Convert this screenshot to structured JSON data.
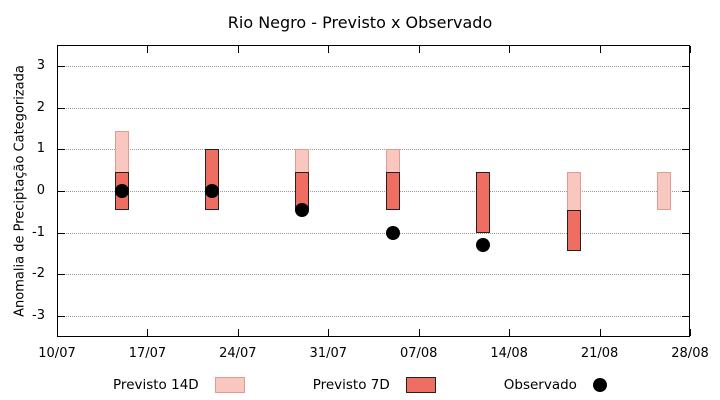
{
  "chart_data": {
    "type": "bar",
    "title": "Rio Negro - Previsto x Observado",
    "ylabel": "Anomalia de Preciptação Categorizada",
    "ylim": [
      -3.5,
      3.5
    ],
    "yticks": [
      -3,
      -2,
      -1,
      0,
      1,
      2,
      3
    ],
    "xlim_days": [
      0,
      49
    ],
    "xticks": [
      {
        "day": 0,
        "label": "10/07"
      },
      {
        "day": 7,
        "label": "17/07"
      },
      {
        "day": 14,
        "label": "24/07"
      },
      {
        "day": 21,
        "label": "31/07"
      },
      {
        "day": 28,
        "label": "07/08"
      },
      {
        "day": 35,
        "label": "14/08"
      },
      {
        "day": 42,
        "label": "21/08"
      },
      {
        "day": 49,
        "label": "28/08"
      }
    ],
    "grid": "horizontal-dotted",
    "legend_position": "bottom-center",
    "points": [
      {
        "date": "15/07",
        "day": 5,
        "previsto14": [
          -0.45,
          1.45
        ],
        "previsto7": [
          -0.45,
          0.45
        ],
        "observado": 0.0
      },
      {
        "date": "22/07",
        "day": 12,
        "previsto14": [
          -0.45,
          1.0
        ],
        "previsto7": [
          -0.45,
          1.0
        ],
        "observado": 0.0
      },
      {
        "date": "29/07",
        "day": 19,
        "previsto14": [
          -0.45,
          1.0
        ],
        "previsto7": [
          -0.45,
          0.45
        ],
        "observado": -0.45
      },
      {
        "date": "05/08",
        "day": 26,
        "previsto14": [
          -0.45,
          1.0
        ],
        "previsto7": [
          -0.45,
          0.45
        ],
        "observado": -1.0
      },
      {
        "date": "12/08",
        "day": 33,
        "previsto14": [
          -1.0,
          0.45
        ],
        "previsto7": [
          -1.0,
          0.45
        ],
        "observado": -1.3
      },
      {
        "date": "19/08",
        "day": 40,
        "previsto14": [
          -1.45,
          0.45
        ],
        "previsto7": [
          -1.45,
          -0.45
        ],
        "observado": null
      },
      {
        "date": "26/08",
        "day": 47,
        "previsto14": [
          -0.45,
          0.45
        ],
        "previsto7": null,
        "observado": null
      }
    ],
    "colors": {
      "previsto14": "#f8c8c0",
      "previsto14_border": "#e39b90",
      "previsto7": "#ee6f61",
      "previsto7_border": "#222222",
      "observado": "#000000",
      "grid": "#999999",
      "axis": "#000000"
    }
  },
  "legend": {
    "items": [
      {
        "key": "previsto-14d",
        "label": "Previsto 14D",
        "kind": "swatch14"
      },
      {
        "key": "previsto-7d",
        "label": "Previsto 7D",
        "kind": "swatch7"
      },
      {
        "key": "observado",
        "label": "Observado",
        "kind": "dotsample"
      }
    ]
  }
}
